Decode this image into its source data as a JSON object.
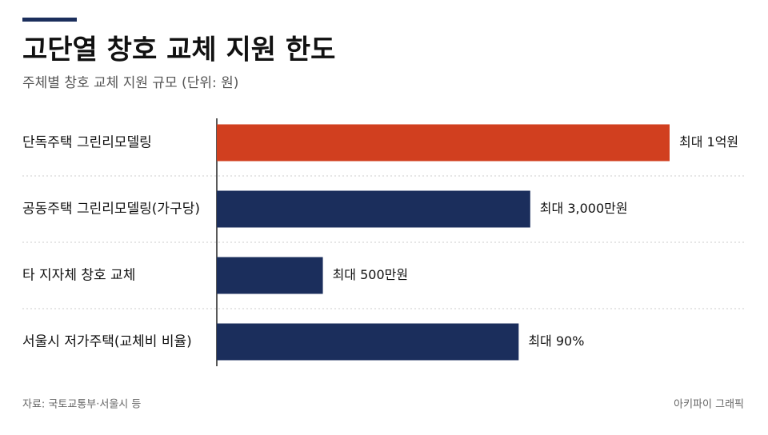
{
  "chart_data": {
    "type": "hbar",
    "title": "고단열 창호 교체 지원 한도",
    "subtitle": "주체별 창호 교체 지원 규모 (단위: 원)",
    "source": "자료: 국토교통부·서울시 등",
    "credit": "아키파이 그래픽",
    "categories": [
      "단독주택 그린리모델링",
      "공동주택 그린리모델링(가구당)",
      "타 지자체 창호 교체",
      "서울시 저가주택(교체비 비율)"
    ],
    "values": [
      100000000,
      30000000,
      5000000,
      90
    ],
    "value_labels": [
      "최대 1억원",
      "최대 3,000만원",
      "최대 500만원",
      "최대 90%"
    ],
    "value_axes": [
      "x",
      "x",
      "x",
      "x2"
    ],
    "colors": [
      "#d13f1f",
      "#1b2e5c",
      "#1b2e5c",
      "#1b2e5c"
    ],
    "xscale": "log",
    "xlim": [
      2000000,
      100000000
    ],
    "x2lim": [
      0,
      135
    ]
  }
}
